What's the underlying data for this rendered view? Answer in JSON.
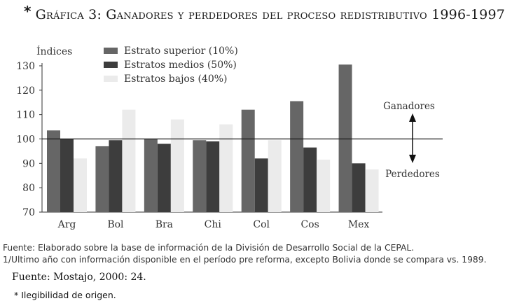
{
  "figure": {
    "marker": "*",
    "title": "Gráfica 3: Ganadores y perdedores del proceso redistributivo 1996-1997"
  },
  "chart_data": {
    "type": "bar",
    "ylabel": "Índices",
    "ylim": [
      70,
      130
    ],
    "yticks": [
      70,
      80,
      90,
      100,
      110,
      120,
      130
    ],
    "reference_line": 100,
    "categories": [
      "Arg",
      "Bol",
      "Bra",
      "Chi",
      "Col",
      "Cos",
      "Mex"
    ],
    "series": [
      {
        "name": "Estrato superior (10%)",
        "color": "#666666",
        "values": [
          103.5,
          97,
          100,
          99.5,
          112,
          115.5,
          130.5
        ]
      },
      {
        "name": "Estratos medios (50%)",
        "color": "#3d3d3d",
        "values": [
          100,
          99.5,
          98,
          99,
          92,
          96.5,
          90
        ]
      },
      {
        "name": "Estratos bajos (40%)",
        "color": "#ebebeb",
        "values": [
          92,
          112,
          108,
          106,
          99.5,
          91.5,
          87.5
        ]
      }
    ],
    "annotations": {
      "up": "Ganadores",
      "down": "Perdedores"
    }
  },
  "notes": {
    "line1": "Fuente: Elaborado sobre la base de información de la División de Desarrollo Social de la CEPAL.",
    "line2": "1/Ultimo año con información disponible en el período pre reforma, excepto Bolivia donde se compara vs. 1989."
  },
  "source": "Fuente: Mostajo, 2000: 24.",
  "illegible_note": "* Ilegibilidad de origen."
}
